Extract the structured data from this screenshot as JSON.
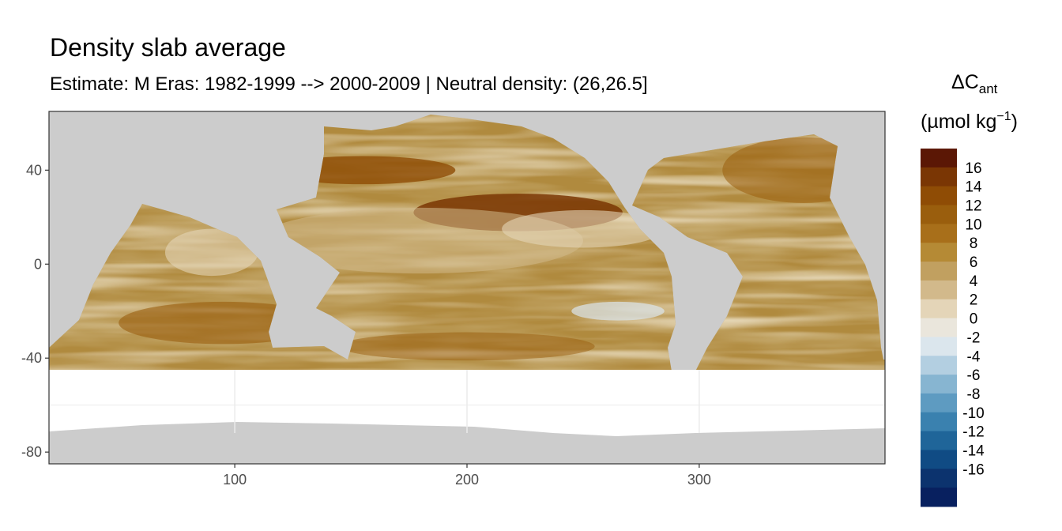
{
  "chart_data": {
    "type": "heatmap",
    "title": "Density slab average",
    "subtitle": "Estimate: M Eras: 1982-1999 --> 2000-2009 | Neutral density: (26,26.5]",
    "xlabel": "",
    "ylabel": "",
    "xlim": [
      20,
      380
    ],
    "ylim": [
      -85,
      65
    ],
    "x_ticks": [
      100,
      200,
      300
    ],
    "y_ticks": [
      40,
      0,
      -40,
      -80
    ],
    "grid": true,
    "legend": {
      "position": "right",
      "title_main": "ΔC",
      "title_sub": "ant",
      "unit_pre": "(µmol kg",
      "unit_sup": "−1",
      "unit_post": ")",
      "breaks": [
        16,
        14,
        12,
        10,
        8,
        6,
        4,
        2,
        0,
        -2,
        -4,
        -6,
        -8,
        -10,
        -12,
        -14,
        -16
      ],
      "colors": [
        "#5b1705",
        "#7a3604",
        "#8f4c05",
        "#9a5e0d",
        "#a86f1a",
        "#b58a35",
        "#c1a060",
        "#d2b98b",
        "#e4d5b8",
        "#eae6dc",
        "#dbe6ed",
        "#b3cfe1",
        "#87b5d1",
        "#5e9bc1",
        "#3a81af",
        "#1f6599",
        "#104b84",
        "#0c336e",
        "#08205f"
      ]
    },
    "colors": {
      "land": "#cccccc",
      "no_data": "#ffffff",
      "grid": "#ebebeb",
      "frame": "#333333",
      "dominant_ocean": "#b08a3e"
    }
  }
}
